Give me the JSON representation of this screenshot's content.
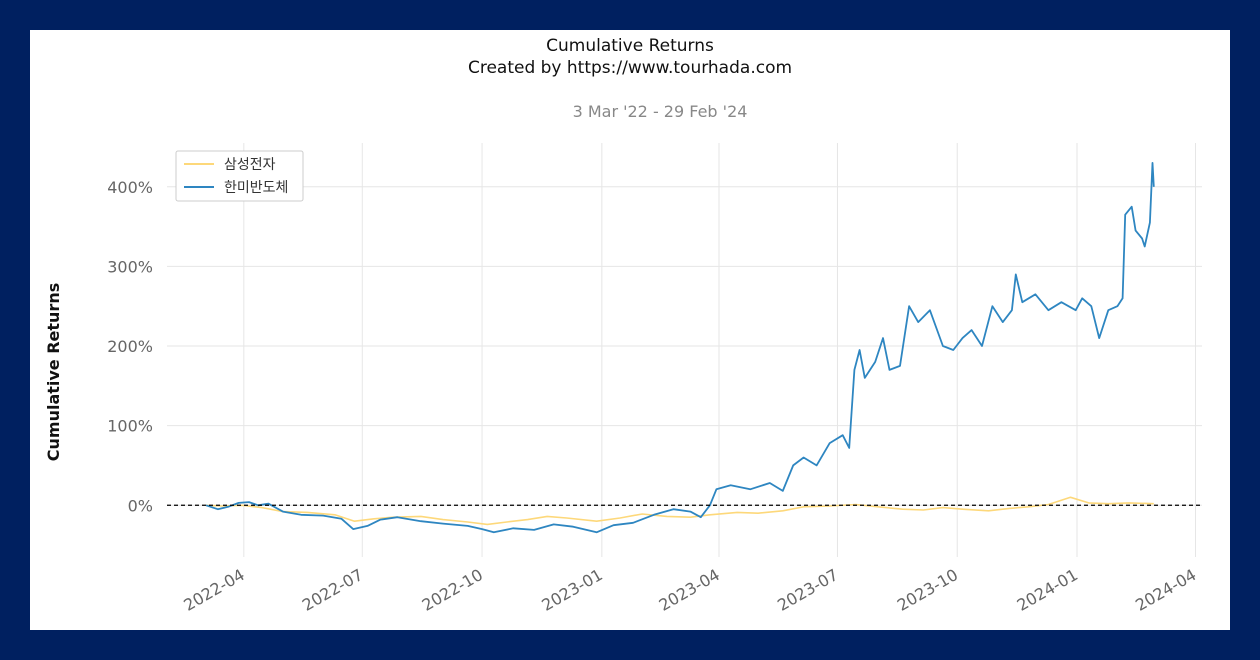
{
  "chart_data": {
    "type": "line",
    "title": "Cumulative Returns",
    "subtitle": "Created by https://www.tourhada.com",
    "date_range": "3 Mar '22 - 29 Feb '24",
    "xlabel": "",
    "ylabel": "Cumulative Returns",
    "x_range": [
      "2022-02-01",
      "2024-04-06"
    ],
    "ylim": [
      -0.65,
      4.55
    ],
    "y_ticks": [
      0,
      1,
      2,
      3,
      4
    ],
    "y_tick_labels": [
      "0%",
      "100%",
      "200%",
      "300%",
      "400%"
    ],
    "x_ticks": [
      "2022-04-01",
      "2022-07-01",
      "2022-10-01",
      "2023-01-01",
      "2023-04-01",
      "2023-07-01",
      "2023-10-01",
      "2024-01-01",
      "2024-04-01"
    ],
    "x_tick_labels": [
      "2022-04",
      "2022-07",
      "2022-10",
      "2023-01",
      "2023-04",
      "2023-07",
      "2023-10",
      "2024-01",
      "2024-04"
    ],
    "grid": true,
    "baseline": 0,
    "legend": "top-left",
    "series": [
      {
        "name": "삼성전자",
        "color": "#fdd87a",
        "points": [
          [
            "2022-03-03",
            0.0
          ],
          [
            "2022-03-15",
            -0.01
          ],
          [
            "2022-03-31",
            0.0
          ],
          [
            "2022-04-15",
            -0.03
          ],
          [
            "2022-05-01",
            -0.08
          ],
          [
            "2022-05-20",
            -0.09
          ],
          [
            "2022-06-10",
            -0.12
          ],
          [
            "2022-06-25",
            -0.2
          ],
          [
            "2022-07-10",
            -0.17
          ],
          [
            "2022-07-25",
            -0.15
          ],
          [
            "2022-08-15",
            -0.14
          ],
          [
            "2022-09-01",
            -0.18
          ],
          [
            "2022-09-20",
            -0.21
          ],
          [
            "2022-10-05",
            -0.24
          ],
          [
            "2022-10-20",
            -0.21
          ],
          [
            "2022-11-05",
            -0.18
          ],
          [
            "2022-11-20",
            -0.14
          ],
          [
            "2022-12-05",
            -0.16
          ],
          [
            "2022-12-28",
            -0.2
          ],
          [
            "2023-01-15",
            -0.16
          ],
          [
            "2023-02-01",
            -0.11
          ],
          [
            "2023-02-20",
            -0.14
          ],
          [
            "2023-03-10",
            -0.15
          ],
          [
            "2023-03-25",
            -0.12
          ],
          [
            "2023-04-15",
            -0.09
          ],
          [
            "2023-05-01",
            -0.1
          ],
          [
            "2023-05-20",
            -0.07
          ],
          [
            "2023-06-05",
            -0.02
          ],
          [
            "2023-06-25",
            -0.01
          ],
          [
            "2023-07-15",
            0.01
          ],
          [
            "2023-08-01",
            -0.02
          ],
          [
            "2023-08-20",
            -0.05
          ],
          [
            "2023-09-05",
            -0.06
          ],
          [
            "2023-09-20",
            -0.03
          ],
          [
            "2023-10-05",
            -0.05
          ],
          [
            "2023-10-25",
            -0.07
          ],
          [
            "2023-11-10",
            -0.04
          ],
          [
            "2023-11-25",
            -0.02
          ],
          [
            "2023-12-10",
            0.01
          ],
          [
            "2023-12-27",
            0.1
          ],
          [
            "2024-01-10",
            0.03
          ],
          [
            "2024-01-25",
            0.02
          ],
          [
            "2024-02-10",
            0.03
          ],
          [
            "2024-02-29",
            0.02
          ]
        ]
      },
      {
        "name": "한미반도체",
        "color": "#2e86c1",
        "points": [
          [
            "2022-03-03",
            0.0
          ],
          [
            "2022-03-12",
            -0.05
          ],
          [
            "2022-03-20",
            -0.02
          ],
          [
            "2022-03-28",
            0.03
          ],
          [
            "2022-04-05",
            0.04
          ],
          [
            "2022-04-12",
            0.0
          ],
          [
            "2022-04-20",
            0.02
          ],
          [
            "2022-05-01",
            -0.08
          ],
          [
            "2022-05-15",
            -0.12
          ],
          [
            "2022-06-01",
            -0.13
          ],
          [
            "2022-06-15",
            -0.17
          ],
          [
            "2022-06-24",
            -0.3
          ],
          [
            "2022-07-05",
            -0.26
          ],
          [
            "2022-07-15",
            -0.18
          ],
          [
            "2022-07-28",
            -0.15
          ],
          [
            "2022-08-15",
            -0.2
          ],
          [
            "2022-09-01",
            -0.23
          ],
          [
            "2022-09-20",
            -0.26
          ],
          [
            "2022-10-01",
            -0.3
          ],
          [
            "2022-10-10",
            -0.34
          ],
          [
            "2022-10-25",
            -0.29
          ],
          [
            "2022-11-10",
            -0.31
          ],
          [
            "2022-11-25",
            -0.24
          ],
          [
            "2022-12-10",
            -0.27
          ],
          [
            "2022-12-28",
            -0.34
          ],
          [
            "2023-01-10",
            -0.25
          ],
          [
            "2023-01-25",
            -0.22
          ],
          [
            "2023-02-10",
            -0.12
          ],
          [
            "2023-02-25",
            -0.05
          ],
          [
            "2023-03-10",
            -0.08
          ],
          [
            "2023-03-18",
            -0.15
          ],
          [
            "2023-03-25",
            0.0
          ],
          [
            "2023-03-30",
            0.2
          ],
          [
            "2023-04-10",
            0.25
          ],
          [
            "2023-04-25",
            0.2
          ],
          [
            "2023-05-10",
            0.28
          ],
          [
            "2023-05-20",
            0.18
          ],
          [
            "2023-05-28",
            0.5
          ],
          [
            "2023-06-05",
            0.6
          ],
          [
            "2023-06-15",
            0.5
          ],
          [
            "2023-06-25",
            0.78
          ],
          [
            "2023-07-05",
            0.88
          ],
          [
            "2023-07-10",
            0.72
          ],
          [
            "2023-07-14",
            1.7
          ],
          [
            "2023-07-18",
            1.95
          ],
          [
            "2023-07-22",
            1.6
          ],
          [
            "2023-07-30",
            1.8
          ],
          [
            "2023-08-05",
            2.1
          ],
          [
            "2023-08-10",
            1.7
          ],
          [
            "2023-08-18",
            1.75
          ],
          [
            "2023-08-25",
            2.5
          ],
          [
            "2023-09-01",
            2.3
          ],
          [
            "2023-09-10",
            2.45
          ],
          [
            "2023-09-20",
            2.0
          ],
          [
            "2023-09-28",
            1.95
          ],
          [
            "2023-10-05",
            2.1
          ],
          [
            "2023-10-12",
            2.2
          ],
          [
            "2023-10-20",
            2.0
          ],
          [
            "2023-10-28",
            2.5
          ],
          [
            "2023-11-05",
            2.3
          ],
          [
            "2023-11-12",
            2.45
          ],
          [
            "2023-11-15",
            2.9
          ],
          [
            "2023-11-20",
            2.55
          ],
          [
            "2023-11-30",
            2.65
          ],
          [
            "2023-12-10",
            2.45
          ],
          [
            "2023-12-20",
            2.55
          ],
          [
            "2023-12-31",
            2.45
          ],
          [
            "2024-01-05",
            2.6
          ],
          [
            "2024-01-12",
            2.5
          ],
          [
            "2024-01-18",
            2.1
          ],
          [
            "2024-01-25",
            2.45
          ],
          [
            "2024-02-01",
            2.5
          ],
          [
            "2024-02-05",
            2.6
          ],
          [
            "2024-02-07",
            3.65
          ],
          [
            "2024-02-12",
            3.75
          ],
          [
            "2024-02-15",
            3.45
          ],
          [
            "2024-02-20",
            3.35
          ],
          [
            "2024-02-22",
            3.25
          ],
          [
            "2024-02-26",
            3.55
          ],
          [
            "2024-02-28",
            4.3
          ],
          [
            "2024-02-29",
            4.0
          ]
        ]
      }
    ]
  }
}
